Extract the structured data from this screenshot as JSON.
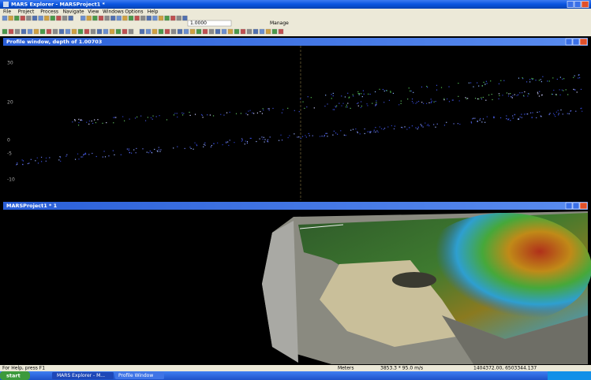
{
  "window": {
    "title": "MARS Explorer - MARSProject1 *"
  },
  "menu": [
    "File",
    "Project",
    "Process",
    "Navigate",
    "View",
    "Windows",
    "Options",
    "Help"
  ],
  "toolbar": {
    "scale": "1.0000",
    "manage": "Manage"
  },
  "profile": {
    "title": "Profile window, depth of 1.00703",
    "axis_labels": [
      "30",
      "20",
      "0",
      "-5",
      "-10"
    ]
  },
  "map": {
    "title": "MARSProject1 * 1"
  },
  "status": {
    "help": "For Help, press F1",
    "units": "Meters",
    "readout": "3853.3 * 95.0 m/s",
    "coords": "1404372.00, 6503344.137"
  },
  "taskbar": {
    "start": "start",
    "tasks": [
      "MARS Explorer - M...",
      "Profile Window"
    ]
  }
}
